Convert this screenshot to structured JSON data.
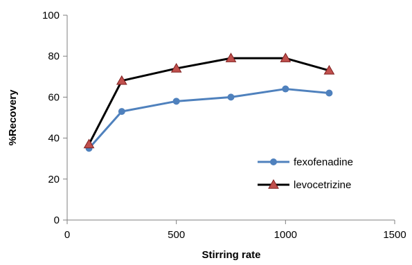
{
  "chart_data": {
    "type": "line",
    "title": "",
    "xlabel": "Stirring rate",
    "ylabel": "%Recovery",
    "xlim": [
      0,
      1500
    ],
    "ylim": [
      0,
      100
    ],
    "x_ticks": [
      0,
      500,
      1000,
      1500
    ],
    "y_ticks": [
      0,
      20,
      40,
      60,
      80,
      100
    ],
    "grid": false,
    "legend_position": "right",
    "x": [
      100,
      250,
      500,
      750,
      1000,
      1200
    ],
    "series": [
      {
        "name": "fexofenadine",
        "values": [
          35,
          53,
          58,
          60,
          64,
          62
        ],
        "line_color": "#4f81bd",
        "marker": "circle",
        "marker_color": "#4f81bd"
      },
      {
        "name": "levocetrizine",
        "values": [
          37,
          68,
          74,
          79,
          79,
          73
        ],
        "line_color": "#000000",
        "marker": "triangle",
        "marker_color": "#c0504d"
      }
    ]
  }
}
